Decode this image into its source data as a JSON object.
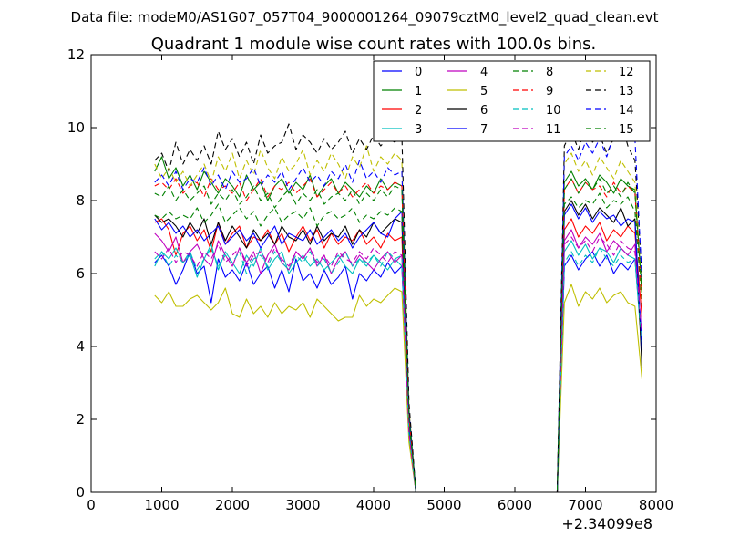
{
  "header": {
    "data_file": "Data file: modeM0/AS1G07_057T04_9000001264_09079cztM0_level2_quad_clean.evt"
  },
  "chart_data": {
    "type": "line",
    "title": "Quadrant 1 module wise count rates with 100.0s bins.",
    "xlabel": "",
    "ylabel": "",
    "x_offset_label": "+2.34099e8",
    "xlim": [
      0,
      8000
    ],
    "ylim": [
      0,
      12
    ],
    "x_ticks": [
      0,
      1000,
      2000,
      3000,
      4000,
      5000,
      6000,
      7000,
      8000
    ],
    "x_tick_labels": [
      "0",
      "1000",
      "2000",
      "3000",
      "4000",
      "5000",
      "6000",
      "7000",
      "8000"
    ],
    "y_ticks": [
      0,
      2,
      4,
      6,
      8,
      10,
      12
    ],
    "y_tick_labels": [
      "0",
      "2",
      "4",
      "6",
      "8",
      "10",
      "12"
    ],
    "grid": false,
    "legend_position": "top-right",
    "x": {
      "seg1": [
        900,
        1000,
        1100,
        1200,
        1300,
        1400,
        1500,
        1600,
        1700,
        1800,
        1900,
        2000,
        2100,
        2200,
        2300,
        2400,
        2500,
        2600,
        2700,
        2800,
        2900,
        3000,
        3100,
        3200,
        3300,
        3400,
        3500,
        3600,
        3700,
        3800,
        3900,
        4000,
        4100,
        4200,
        4300,
        4400
      ],
      "seg2": [
        6700,
        6800,
        6900,
        7000,
        7100,
        7200,
        7300,
        7400,
        7500,
        7600,
        7700,
        7800
      ],
      "zero_start": 4600,
      "zero_end": 6600
    },
    "series": [
      {
        "name": "0",
        "color": "#0000ff",
        "dash": "solid",
        "seg1": [
          6.3,
          6.5,
          6.2,
          5.7,
          6.1,
          6.6,
          6.0,
          6.2,
          5.2,
          6.4,
          5.9,
          6.1,
          5.8,
          6.3,
          5.7,
          6.0,
          6.2,
          5.6,
          6.1,
          5.5,
          6.4,
          5.8,
          6.0,
          5.6,
          6.1,
          5.7,
          5.9,
          6.2,
          5.3,
          6.0,
          5.8,
          6.1,
          5.9,
          6.3,
          6.0,
          6.2
        ],
        "seg2": [
          6.2,
          6.5,
          6.1,
          6.4,
          6.6,
          6.2,
          6.5,
          6.0,
          6.3,
          6.1,
          6.4,
          4.0
        ]
      },
      {
        "name": "1",
        "color": "#008000",
        "dash": "solid",
        "seg1": [
          8.8,
          9.2,
          8.6,
          8.9,
          8.4,
          8.7,
          8.3,
          8.8,
          8.5,
          8.2,
          8.6,
          8.4,
          8.1,
          8.7,
          8.3,
          8.5,
          8.0,
          8.4,
          8.6,
          8.2,
          8.5,
          8.3,
          8.7,
          8.1,
          8.4,
          8.6,
          8.2,
          8.5,
          8.3,
          8.1,
          8.4,
          8.2,
          8.6,
          8.3,
          8.5,
          8.4
        ],
        "seg2": [
          8.5,
          8.8,
          8.4,
          8.6,
          8.3,
          8.7,
          8.5,
          8.2,
          8.6,
          8.4,
          8.3,
          5.5
        ]
      },
      {
        "name": "2",
        "color": "#ff0000",
        "dash": "solid",
        "seg1": [
          7.4,
          7.5,
          7.2,
          6.5,
          7.1,
          7.3,
          6.9,
          7.2,
          6.6,
          7.4,
          6.8,
          7.1,
          7.3,
          6.7,
          7.0,
          6.9,
          7.2,
          6.8,
          7.1,
          6.6,
          7.0,
          7.3,
          6.9,
          7.2,
          6.7,
          7.1,
          6.8,
          7.0,
          6.9,
          7.2,
          6.8,
          7.0,
          6.7,
          7.1,
          6.9,
          7.0
        ],
        "seg2": [
          7.2,
          7.5,
          7.0,
          7.3,
          7.1,
          7.4,
          6.9,
          7.2,
          7.0,
          7.3,
          7.1,
          4.8
        ]
      },
      {
        "name": "3",
        "color": "#00bfbf",
        "dash": "solid",
        "seg1": [
          6.2,
          6.6,
          6.4,
          6.7,
          6.3,
          6.5,
          5.9,
          6.4,
          6.8,
          6.1,
          6.6,
          6.3,
          6.0,
          6.5,
          6.2,
          6.7,
          6.1,
          6.4,
          6.6,
          6.0,
          6.3,
          6.5,
          6.2,
          6.4,
          6.1,
          6.3,
          6.5,
          6.2,
          6.0,
          6.4,
          6.2,
          6.5,
          6.3,
          6.1,
          6.4,
          6.2
        ],
        "seg2": [
          6.6,
          6.9,
          6.5,
          6.8,
          6.4,
          6.7,
          6.6,
          6.3,
          6.7,
          6.5,
          6.4,
          3.9
        ]
      },
      {
        "name": "4",
        "color": "#bf00bf",
        "dash": "solid",
        "seg1": [
          7.1,
          6.9,
          6.6,
          7.0,
          6.3,
          6.6,
          6.8,
          6.4,
          6.2,
          6.9,
          6.5,
          6.2,
          6.7,
          6.3,
          6.6,
          6.0,
          6.5,
          6.8,
          6.3,
          6.1,
          6.6,
          6.4,
          6.7,
          6.2,
          6.5,
          6.0,
          6.4,
          6.6,
          6.2,
          6.5,
          6.3,
          6.1,
          6.4,
          6.6,
          6.3,
          6.5
        ],
        "seg2": [
          6.9,
          7.2,
          6.7,
          7.0,
          6.8,
          7.1,
          6.6,
          6.9,
          6.7,
          6.5,
          6.8,
          4.2
        ]
      },
      {
        "name": "5",
        "color": "#bfbf00",
        "dash": "solid",
        "seg1": [
          5.4,
          5.2,
          5.5,
          5.1,
          5.1,
          5.3,
          5.4,
          5.2,
          5.0,
          5.2,
          5.6,
          4.9,
          4.8,
          5.3,
          4.9,
          5.1,
          4.8,
          5.2,
          4.9,
          5.1,
          5.0,
          5.2,
          4.8,
          5.3,
          5.1,
          4.9,
          4.7,
          4.8,
          4.8,
          5.4,
          5.1,
          5.3,
          5.2,
          5.4,
          5.6,
          5.5
        ],
        "seg2": [
          5.2,
          5.7,
          5.1,
          5.5,
          5.3,
          5.6,
          5.2,
          5.4,
          5.5,
          5.2,
          5.1,
          3.1
        ]
      },
      {
        "name": "6",
        "color": "#000000",
        "dash": "solid",
        "seg1": [
          7.6,
          7.4,
          7.5,
          7.3,
          7.0,
          7.4,
          7.1,
          7.5,
          6.8,
          7.4,
          6.9,
          7.3,
          7.0,
          6.7,
          7.2,
          6.9,
          7.1,
          6.8,
          7.3,
          7.0,
          6.9,
          7.2,
          6.8,
          7.3,
          6.9,
          7.1,
          7.0,
          7.3,
          6.8,
          7.2,
          7.0,
          7.4,
          7.1,
          7.3,
          7.5,
          7.4
        ],
        "seg2": [
          7.7,
          8.0,
          7.6,
          7.9,
          7.5,
          7.8,
          7.6,
          7.4,
          7.8,
          7.3,
          7.5,
          3.4
        ]
      },
      {
        "name": "7",
        "color": "#0000ff",
        "dash": "solid",
        "seg1": [
          7.5,
          7.2,
          7.4,
          7.1,
          7.3,
          7.0,
          7.2,
          6.9,
          7.1,
          7.3,
          6.8,
          7.0,
          7.2,
          6.9,
          7.1,
          6.7,
          7.0,
          7.3,
          6.8,
          7.1,
          7.0,
          6.9,
          7.2,
          6.8,
          7.0,
          7.2,
          6.9,
          7.1,
          6.7,
          7.0,
          7.2,
          7.4,
          7.1,
          7.0,
          7.5,
          7.7
        ],
        "seg2": [
          7.6,
          7.9,
          7.5,
          7.8,
          7.4,
          7.7,
          7.5,
          7.6,
          7.3,
          7.5,
          7.4,
          3.9
        ]
      },
      {
        "name": "8",
        "color": "#008000",
        "dash": "dashed",
        "seg1": [
          7.6,
          7.5,
          7.7,
          7.5,
          7.6,
          7.5,
          7.8,
          7.4,
          7.6,
          7.9,
          7.4,
          7.6,
          7.8,
          7.5,
          7.7,
          7.3,
          7.6,
          7.8,
          7.4,
          7.6,
          7.7,
          7.5,
          7.8,
          7.3,
          7.6,
          7.7,
          7.5,
          7.6,
          7.8,
          7.4,
          7.6,
          7.5,
          7.7,
          7.6,
          7.8,
          7.7
        ],
        "seg2": [
          7.9,
          8.1,
          7.8,
          8.0,
          7.9,
          8.2,
          7.8,
          8.0,
          7.9,
          8.1,
          7.7,
          5.1
        ]
      },
      {
        "name": "9",
        "color": "#ff0000",
        "dash": "dashed",
        "seg1": [
          8.4,
          8.5,
          8.3,
          8.6,
          8.2,
          8.4,
          8.5,
          8.1,
          8.6,
          8.3,
          8.4,
          8.2,
          8.5,
          8.0,
          8.3,
          8.6,
          8.1,
          8.4,
          8.3,
          8.5,
          8.2,
          8.4,
          8.6,
          8.1,
          8.3,
          8.5,
          8.2,
          8.4,
          8.1,
          8.3,
          8.5,
          8.2,
          8.4,
          8.3,
          8.5,
          8.4
        ],
        "seg2": [
          8.3,
          8.6,
          8.2,
          8.5,
          8.3,
          8.4,
          8.1,
          8.5,
          8.2,
          8.4,
          8.2,
          5.2
        ]
      },
      {
        "name": "10",
        "color": "#00bfbf",
        "dash": "dashed",
        "seg1": [
          6.4,
          6.6,
          6.2,
          6.5,
          6.3,
          6.6,
          6.1,
          6.4,
          6.7,
          6.2,
          6.5,
          6.3,
          6.6,
          6.0,
          6.4,
          6.5,
          6.2,
          6.6,
          6.3,
          6.1,
          6.5,
          6.3,
          6.6,
          6.2,
          6.4,
          6.0,
          6.3,
          6.6,
          6.2,
          6.4,
          6.3,
          6.5,
          6.2,
          6.6,
          6.4,
          6.5
        ],
        "seg2": [
          6.3,
          6.6,
          6.2,
          6.5,
          6.3,
          6.7,
          6.4,
          6.2,
          6.5,
          6.3,
          6.4,
          4.1
        ]
      },
      {
        "name": "11",
        "color": "#bf00bf",
        "dash": "dashed",
        "seg1": [
          6.6,
          6.4,
          6.7,
          6.3,
          6.6,
          6.5,
          6.2,
          6.6,
          6.4,
          6.8,
          6.3,
          6.5,
          6.7,
          6.2,
          6.5,
          6.6,
          6.3,
          6.7,
          6.4,
          6.2,
          6.6,
          6.4,
          6.7,
          6.3,
          6.5,
          6.2,
          6.6,
          6.4,
          6.3,
          6.6,
          6.4,
          6.7,
          6.5,
          6.3,
          6.6,
          6.5
        ],
        "seg2": [
          6.8,
          7.0,
          6.7,
          6.9,
          6.6,
          7.0,
          6.8,
          6.5,
          6.9,
          6.7,
          6.6,
          4.3
        ]
      },
      {
        "name": "12",
        "color": "#bfbf00",
        "dash": "dashed",
        "seg1": [
          9.0,
          8.6,
          8.9,
          8.5,
          8.8,
          8.4,
          8.7,
          9.0,
          8.5,
          9.2,
          8.8,
          9.3,
          8.6,
          9.1,
          8.7,
          9.4,
          8.9,
          8.6,
          9.2,
          8.8,
          9.0,
          9.4,
          8.7,
          9.1,
          8.8,
          9.3,
          9.0,
          8.6,
          9.2,
          8.9,
          9.5,
          8.8,
          9.2,
          9.0,
          9.3,
          9.1
        ],
        "seg2": [
          9.0,
          9.3,
          8.8,
          9.1,
          8.7,
          9.2,
          8.9,
          8.6,
          9.1,
          8.8,
          8.5,
          5.3
        ]
      },
      {
        "name": "13",
        "color": "#000000",
        "dash": "dashed",
        "seg1": [
          9.1,
          9.3,
          8.8,
          9.6,
          9.0,
          9.4,
          9.1,
          9.5,
          9.0,
          9.9,
          9.4,
          9.7,
          9.2,
          9.6,
          9.0,
          9.8,
          9.3,
          9.5,
          9.6,
          10.1,
          9.4,
          9.8,
          9.6,
          9.3,
          9.7,
          9.4,
          9.6,
          9.9,
          9.3,
          9.7,
          9.4,
          9.8,
          9.5,
          9.7,
          9.6,
          9.8
        ],
        "seg2": [
          9.5,
          9.9,
          9.4,
          10.0,
          9.6,
          9.8,
          9.3,
          9.7,
          10.2,
          9.5,
          9.1,
          5.9
        ]
      },
      {
        "name": "14",
        "color": "#0000ff",
        "dash": "dashed",
        "seg1": [
          8.5,
          8.7,
          8.4,
          8.8,
          8.3,
          8.6,
          8.5,
          8.9,
          8.4,
          8.7,
          8.3,
          8.8,
          8.5,
          8.6,
          8.9,
          8.4,
          8.7,
          8.5,
          8.8,
          8.3,
          8.6,
          8.9,
          8.5,
          8.7,
          8.4,
          8.8,
          8.6,
          9.0,
          8.5,
          9.1,
          8.6,
          8.8,
          8.5,
          8.9,
          8.7,
          8.8
        ],
        "seg2": [
          9.2,
          9.5,
          9.1,
          9.6,
          9.3,
          9.7,
          9.2,
          9.8,
          9.6,
          10.0,
          9.7,
          5.8
        ]
      },
      {
        "name": "15",
        "color": "#008000",
        "dash": "dashed",
        "seg1": [
          8.2,
          8.1,
          8.4,
          8.0,
          8.3,
          8.0,
          8.2,
          8.4,
          7.9,
          8.2,
          8.0,
          8.3,
          7.9,
          8.1,
          8.4,
          8.0,
          8.2,
          7.8,
          8.1,
          8.3,
          7.9,
          8.2,
          8.0,
          8.3,
          7.9,
          8.1,
          8.2,
          8.0,
          8.3,
          7.9,
          8.2,
          8.0,
          8.3,
          8.1,
          8.4,
          8.3
        ],
        "seg2": [
          8.3,
          8.6,
          8.2,
          8.5,
          8.3,
          8.6,
          8.2,
          8.4,
          8.1,
          8.5,
          8.2,
          5.4
        ]
      }
    ]
  }
}
